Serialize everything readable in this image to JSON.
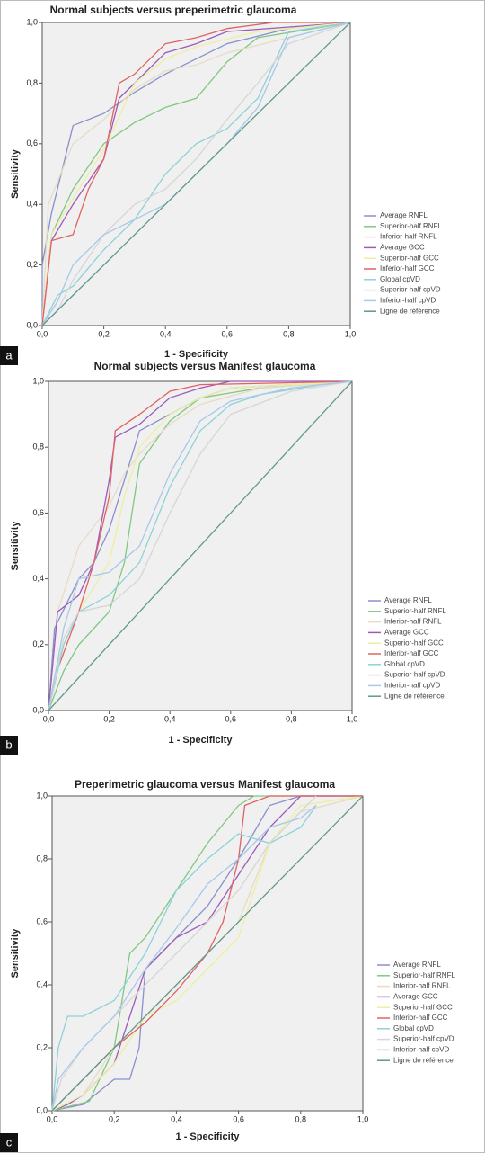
{
  "chart_data": [
    {
      "type": "line",
      "title": "Normal subjects versus preperimetric glaucoma",
      "panel_label": "a",
      "x_label": "1 - Specificity",
      "y_label": "Sensitivity",
      "xlim": [
        0,
        1
      ],
      "ylim": [
        0,
        1
      ],
      "xticks": [
        {
          "value": 0,
          "label": "0,0"
        },
        {
          "value": 0.2,
          "label": "0,2"
        },
        {
          "value": 0.4,
          "label": "0,4"
        },
        {
          "value": 0.6,
          "label": "0,6"
        },
        {
          "value": 0.8,
          "label": "0,8"
        },
        {
          "value": 1,
          "label": "1,0"
        }
      ],
      "yticks": [
        {
          "value": 0,
          "label": "0,0"
        },
        {
          "value": 0.2,
          "label": "0,2"
        },
        {
          "value": 0.4,
          "label": "0,4"
        },
        {
          "value": 0.6,
          "label": "0,6"
        },
        {
          "value": 0.8,
          "label": "0,8"
        },
        {
          "value": 1,
          "label": "1,0"
        }
      ],
      "series": [
        {
          "name": "Average RNFL",
          "color": "#8a8fcc",
          "x": [
            0,
            0,
            0.03,
            0.1,
            0.2,
            0.3,
            0.4,
            0.5,
            0.6,
            0.8,
            1
          ],
          "values": [
            0,
            0.2,
            0.37,
            0.66,
            0.7,
            0.77,
            0.83,
            0.88,
            0.93,
            0.98,
            1
          ]
        },
        {
          "name": "Superior-half RNFL",
          "color": "#80c880",
          "x": [
            0,
            0.03,
            0.1,
            0.2,
            0.3,
            0.4,
            0.5,
            0.6,
            0.7,
            1
          ],
          "values": [
            0,
            0.3,
            0.45,
            0.6,
            0.67,
            0.72,
            0.75,
            0.87,
            0.95,
            1
          ]
        },
        {
          "name": "Inferior-half RNFL",
          "color": "#e6dcc4",
          "x": [
            0,
            0.02,
            0.1,
            0.2,
            0.3,
            0.4,
            0.5,
            0.6,
            0.8,
            1
          ],
          "values": [
            0,
            0.4,
            0.6,
            0.68,
            0.78,
            0.84,
            0.86,
            0.9,
            0.95,
            1
          ]
        },
        {
          "name": "Average GCC",
          "color": "#9b5cb8",
          "x": [
            0,
            0.03,
            0.1,
            0.2,
            0.25,
            0.3,
            0.4,
            0.5,
            0.6,
            1
          ],
          "values": [
            0,
            0.28,
            0.4,
            0.55,
            0.75,
            0.8,
            0.9,
            0.93,
            0.97,
            1
          ]
        },
        {
          "name": "Superior-half GCC",
          "color": "#eeeea0",
          "x": [
            0,
            0.03,
            0.1,
            0.2,
            0.3,
            0.4,
            0.5,
            0.7,
            1
          ],
          "values": [
            0,
            0.3,
            0.42,
            0.58,
            0.8,
            0.88,
            0.92,
            0.97,
            1
          ]
        },
        {
          "name": "Inferior-half GCC",
          "color": "#e06262",
          "x": [
            0,
            0.03,
            0.1,
            0.15,
            0.2,
            0.25,
            0.3,
            0.4,
            0.5,
            0.6,
            0.75,
            1
          ],
          "values": [
            0,
            0.28,
            0.3,
            0.45,
            0.55,
            0.8,
            0.83,
            0.93,
            0.95,
            0.98,
            1,
            1
          ]
        },
        {
          "name": "Global cpVD",
          "color": "#8cd2d8",
          "x": [
            0,
            0.05,
            0.1,
            0.2,
            0.3,
            0.4,
            0.5,
            0.6,
            0.7,
            0.8,
            1
          ],
          "values": [
            0,
            0.1,
            0.13,
            0.25,
            0.35,
            0.5,
            0.6,
            0.65,
            0.75,
            0.97,
            1
          ]
        },
        {
          "name": "Superior-half cpVD",
          "color": "#d6d6d6",
          "x": [
            0,
            0.05,
            0.1,
            0.2,
            0.3,
            0.4,
            0.5,
            0.6,
            0.7,
            0.8,
            1
          ],
          "values": [
            0,
            0.05,
            0.15,
            0.3,
            0.4,
            0.45,
            0.55,
            0.68,
            0.8,
            0.93,
            1
          ]
        },
        {
          "name": "Inferior-half cpVD",
          "color": "#a8c8e8",
          "x": [
            0,
            0.05,
            0.1,
            0.2,
            0.3,
            0.4,
            0.5,
            0.6,
            0.7,
            0.8,
            1
          ],
          "values": [
            0,
            0.08,
            0.2,
            0.3,
            0.35,
            0.4,
            0.5,
            0.6,
            0.72,
            0.95,
            1
          ]
        },
        {
          "name": "Ligne de référence",
          "color": "#5e9a8a",
          "x": [
            0,
            1
          ],
          "values": [
            0,
            1
          ]
        }
      ]
    },
    {
      "type": "line",
      "title": "Normal subjects versus Manifest glaucoma",
      "panel_label": "b",
      "x_label": "1 - Specificity",
      "y_label": "Sensitivity",
      "xlim": [
        0,
        1
      ],
      "ylim": [
        0,
        1
      ],
      "xticks": [
        {
          "value": 0,
          "label": "0,0"
        },
        {
          "value": 0.2,
          "label": "0,2"
        },
        {
          "value": 0.4,
          "label": "0,4"
        },
        {
          "value": 0.6,
          "label": "0,6"
        },
        {
          "value": 0.8,
          "label": "0,8"
        },
        {
          "value": 1,
          "label": "1,0"
        }
      ],
      "yticks": [
        {
          "value": 0,
          "label": "0,0"
        },
        {
          "value": 0.2,
          "label": "0,2"
        },
        {
          "value": 0.4,
          "label": "0,4"
        },
        {
          "value": 0.6,
          "label": "0,6"
        },
        {
          "value": 0.8,
          "label": "0,8"
        },
        {
          "value": 1,
          "label": "1,0"
        }
      ],
      "series": [
        {
          "name": "Average RNFL",
          "color": "#8a8fcc",
          "x": [
            0,
            0.02,
            0.1,
            0.15,
            0.2,
            0.25,
            0.3,
            0.4,
            0.5,
            0.6,
            1
          ],
          "values": [
            0,
            0.25,
            0.4,
            0.45,
            0.55,
            0.7,
            0.85,
            0.9,
            0.95,
            0.98,
            1
          ]
        },
        {
          "name": "Superior-half RNFL",
          "color": "#80c880",
          "x": [
            0,
            0.05,
            0.1,
            0.15,
            0.2,
            0.25,
            0.3,
            0.4,
            0.5,
            0.7,
            1
          ],
          "values": [
            0,
            0.12,
            0.2,
            0.25,
            0.3,
            0.45,
            0.75,
            0.88,
            0.95,
            0.98,
            1
          ]
        },
        {
          "name": "Inferior-half RNFL",
          "color": "#e6dcc4",
          "x": [
            0,
            0.03,
            0.1,
            0.2,
            0.25,
            0.3,
            0.4,
            0.5,
            0.7,
            1
          ],
          "values": [
            0,
            0.3,
            0.5,
            0.62,
            0.72,
            0.78,
            0.87,
            0.93,
            0.98,
            1
          ]
        },
        {
          "name": "Average GCC",
          "color": "#9b5cb8",
          "x": [
            0,
            0.03,
            0.1,
            0.15,
            0.2,
            0.22,
            0.3,
            0.4,
            0.5,
            0.6,
            1
          ],
          "values": [
            0,
            0.3,
            0.35,
            0.45,
            0.7,
            0.83,
            0.87,
            0.95,
            0.98,
            1,
            1
          ]
        },
        {
          "name": "Superior-half GCC",
          "color": "#eeeea0",
          "x": [
            0,
            0.05,
            0.1,
            0.2,
            0.25,
            0.3,
            0.4,
            0.5,
            0.6,
            1
          ],
          "values": [
            0,
            0.2,
            0.3,
            0.45,
            0.65,
            0.8,
            0.9,
            0.95,
            0.98,
            1
          ]
        },
        {
          "name": "Inferior-half GCC",
          "color": "#e06262",
          "x": [
            0,
            0.02,
            0.1,
            0.15,
            0.2,
            0.22,
            0.3,
            0.4,
            0.5,
            1
          ],
          "values": [
            0,
            0.1,
            0.3,
            0.45,
            0.65,
            0.85,
            0.9,
            0.97,
            0.99,
            1
          ]
        },
        {
          "name": "Global cpVD",
          "color": "#8cd2d8",
          "x": [
            0,
            0.05,
            0.1,
            0.2,
            0.3,
            0.4,
            0.5,
            0.6,
            0.7,
            0.9,
            1
          ],
          "values": [
            0,
            0.2,
            0.3,
            0.35,
            0.45,
            0.68,
            0.85,
            0.93,
            0.96,
            0.99,
            1
          ]
        },
        {
          "name": "Superior-half cpVD",
          "color": "#d6d6d6",
          "x": [
            0,
            0.05,
            0.1,
            0.2,
            0.3,
            0.4,
            0.5,
            0.6,
            0.8,
            1
          ],
          "values": [
            0,
            0.22,
            0.3,
            0.32,
            0.4,
            0.6,
            0.78,
            0.9,
            0.97,
            1
          ]
        },
        {
          "name": "Inferior-half cpVD",
          "color": "#a8c8e8",
          "x": [
            0,
            0.05,
            0.1,
            0.2,
            0.3,
            0.4,
            0.5,
            0.6,
            0.8,
            1
          ],
          "values": [
            0,
            0.25,
            0.4,
            0.42,
            0.5,
            0.72,
            0.88,
            0.94,
            0.98,
            1
          ]
        },
        {
          "name": "Ligne de référence",
          "color": "#5e9a8a",
          "x": [
            0,
            1
          ],
          "values": [
            0,
            1
          ]
        }
      ]
    },
    {
      "type": "line",
      "title": "Preperimetric glaucoma versus Manifest glaucoma",
      "panel_label": "c",
      "x_label": "1 - Specificity",
      "y_label": "Sensitivity",
      "xlim": [
        0,
        1
      ],
      "ylim": [
        0,
        1
      ],
      "xticks": [
        {
          "value": 0,
          "label": "0,0"
        },
        {
          "value": 0.2,
          "label": "0,2"
        },
        {
          "value": 0.4,
          "label": "0,4"
        },
        {
          "value": 0.6,
          "label": "0,6"
        },
        {
          "value": 0.8,
          "label": "0,8"
        },
        {
          "value": 1,
          "label": "1,0"
        }
      ],
      "yticks": [
        {
          "value": 0,
          "label": "0,0"
        },
        {
          "value": 0.2,
          "label": "0,2"
        },
        {
          "value": 0.4,
          "label": "0,4"
        },
        {
          "value": 0.6,
          "label": "0,6"
        },
        {
          "value": 0.8,
          "label": "0,8"
        },
        {
          "value": 1,
          "label": "1,0"
        }
      ],
      "series": [
        {
          "name": "Average RNFL",
          "color": "#8a8fcc",
          "x": [
            0,
            0.1,
            0.2,
            0.25,
            0.28,
            0.3,
            0.4,
            0.5,
            0.6,
            0.7,
            0.8,
            1
          ],
          "values": [
            0,
            0.02,
            0.1,
            0.1,
            0.2,
            0.45,
            0.55,
            0.65,
            0.8,
            0.97,
            1,
            1
          ]
        },
        {
          "name": "Superior-half RNFL",
          "color": "#80c880",
          "x": [
            0,
            0.12,
            0.2,
            0.25,
            0.3,
            0.4,
            0.5,
            0.6,
            0.65,
            0.7,
            1
          ],
          "values": [
            0,
            0.03,
            0.2,
            0.5,
            0.55,
            0.7,
            0.85,
            0.97,
            1,
            1,
            1
          ]
        },
        {
          "name": "Inferior-half RNFL",
          "color": "#e6dcc4",
          "x": [
            0,
            0.1,
            0.2,
            0.3,
            0.4,
            0.5,
            0.6,
            0.7,
            0.8,
            1
          ],
          "values": [
            0,
            0.05,
            0.2,
            0.3,
            0.4,
            0.5,
            0.6,
            0.85,
            0.95,
            1
          ]
        },
        {
          "name": "Average GCC",
          "color": "#9b5cb8",
          "x": [
            0,
            0.05,
            0.1,
            0.2,
            0.3,
            0.4,
            0.5,
            0.6,
            0.7,
            0.8,
            1
          ],
          "values": [
            0,
            0.02,
            0.05,
            0.15,
            0.45,
            0.55,
            0.6,
            0.75,
            0.9,
            1,
            1
          ]
        },
        {
          "name": "Superior-half GCC",
          "color": "#eeeea0",
          "x": [
            0,
            0.1,
            0.2,
            0.3,
            0.4,
            0.5,
            0.6,
            0.7,
            0.8,
            1
          ],
          "values": [
            0,
            0.05,
            0.15,
            0.3,
            0.35,
            0.45,
            0.55,
            0.85,
            0.97,
            1
          ]
        },
        {
          "name": "Inferior-half GCC",
          "color": "#e06262",
          "x": [
            0,
            0.1,
            0.2,
            0.3,
            0.4,
            0.5,
            0.55,
            0.6,
            0.62,
            0.7,
            1
          ],
          "values": [
            0,
            0.1,
            0.2,
            0.28,
            0.38,
            0.5,
            0.6,
            0.8,
            0.97,
            1,
            1
          ]
        },
        {
          "name": "Global cpVD",
          "color": "#8cd2d8",
          "x": [
            0,
            0.02,
            0.05,
            0.1,
            0.2,
            0.3,
            0.4,
            0.5,
            0.6,
            0.7,
            0.8,
            0.85
          ],
          "values": [
            0,
            0.2,
            0.3,
            0.3,
            0.35,
            0.5,
            0.7,
            0.8,
            0.88,
            0.85,
            0.9,
            0.97
          ]
        },
        {
          "name": "Superior-half cpVD",
          "color": "#d6d6d6",
          "x": [
            0,
            0.03,
            0.1,
            0.2,
            0.3,
            0.4,
            0.5,
            0.6,
            0.7,
            0.8,
            0.85
          ],
          "values": [
            0,
            0.1,
            0.2,
            0.3,
            0.4,
            0.5,
            0.6,
            0.7,
            0.85,
            0.95,
            1
          ]
        },
        {
          "name": "Inferior-half cpVD",
          "color": "#a8c8e8",
          "x": [
            0,
            0.02,
            0.1,
            0.2,
            0.3,
            0.4,
            0.5,
            0.6,
            0.7,
            0.8,
            0.85
          ],
          "values": [
            0,
            0.1,
            0.2,
            0.3,
            0.45,
            0.58,
            0.72,
            0.8,
            0.9,
            0.93,
            0.97
          ]
        },
        {
          "name": "Ligne de référence",
          "color": "#5e9a8a",
          "x": [
            0,
            1
          ],
          "values": [
            0,
            1
          ]
        }
      ]
    }
  ]
}
